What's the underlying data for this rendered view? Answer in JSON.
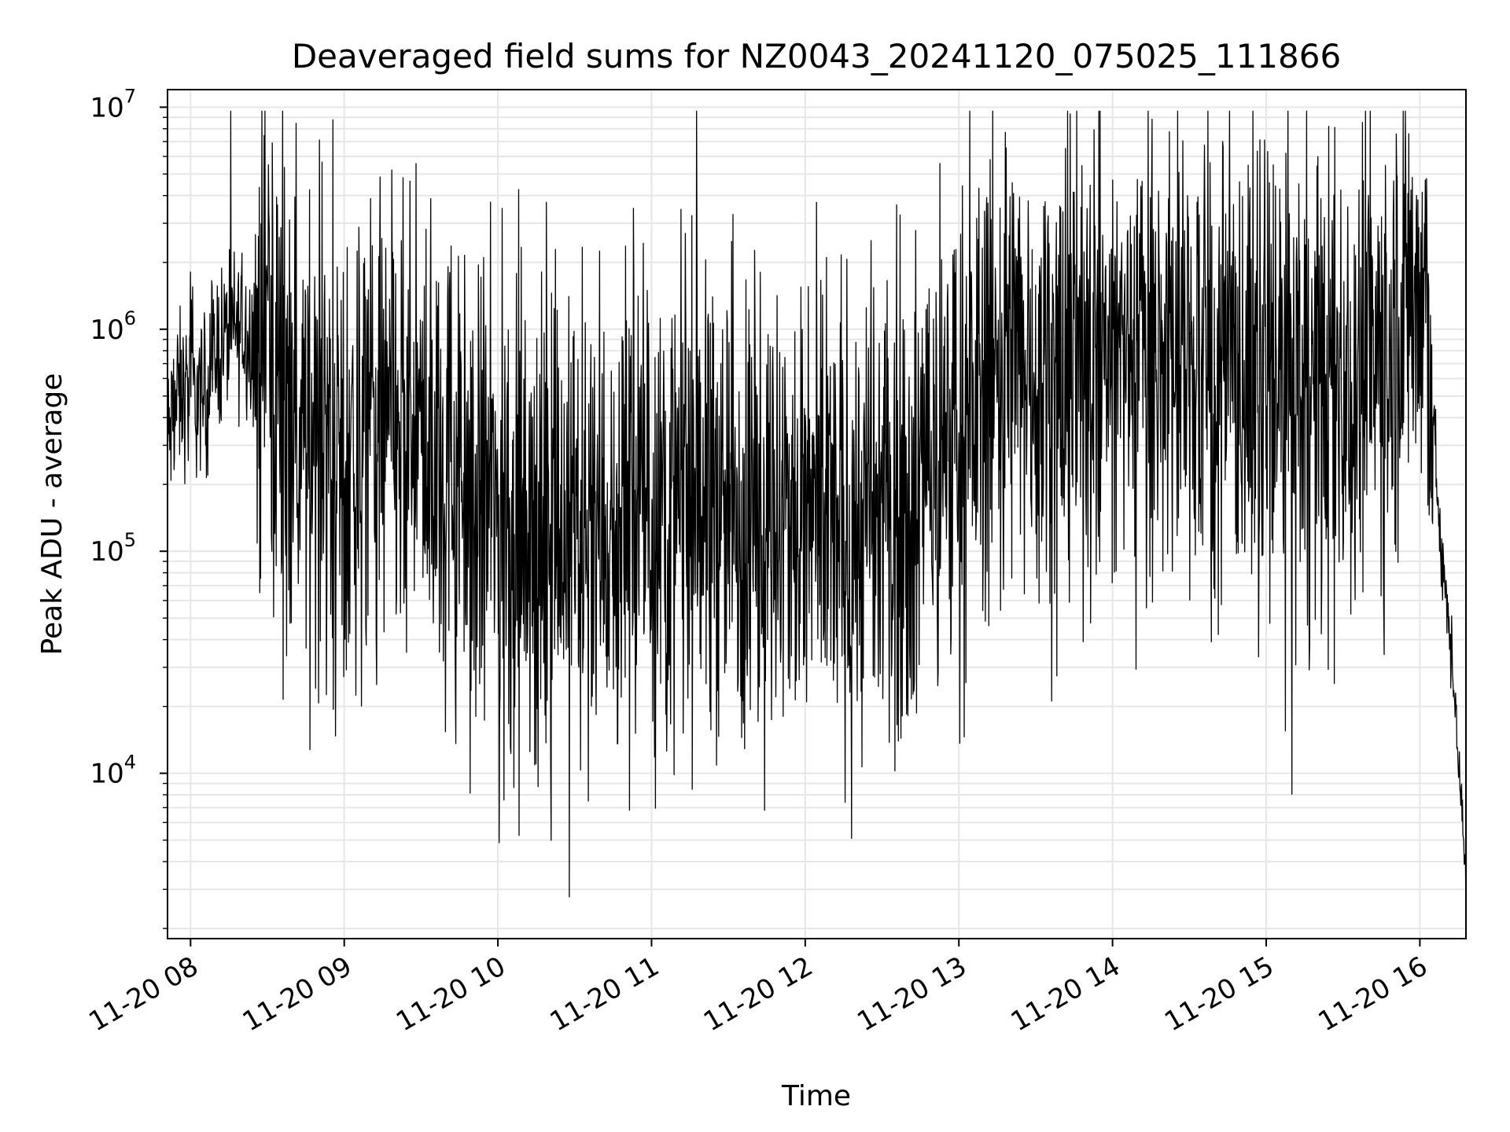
{
  "chart_data": {
    "type": "line",
    "title": "Deaveraged field sums for NZ0043_20241120_075025_111866",
    "xlabel": "Time",
    "ylabel": "Peak ADU - average",
    "y_scale": "log",
    "ylim": [
      1800,
      12000000
    ],
    "xlim": [
      "2024-11-20 07:51",
      "2024-11-20 16:18"
    ],
    "x_ticks": [
      "11-20 08",
      "11-20 09",
      "11-20 10",
      "11-20 11",
      "11-20 12",
      "11-20 13",
      "11-20 14",
      "11-20 15",
      "11-20 16"
    ],
    "y_ticks": [
      {
        "base": "10",
        "exp": "4"
      },
      {
        "base": "10",
        "exp": "5"
      },
      {
        "base": "10",
        "exp": "6"
      },
      {
        "base": "10",
        "exp": "7"
      }
    ],
    "grid": true,
    "line_color": "#000000",
    "grid_color": "#e6e6e6",
    "series": [
      {
        "x": [
          "2024-11-20 07:51",
          "2024-11-20 07:55",
          "2024-11-20 08:00",
          "2024-11-20 08:05",
          "2024-11-20 08:10",
          "2024-11-20 08:15",
          "2024-11-20 08:20",
          "2024-11-20 08:25",
          "2024-11-20 08:30",
          "2024-11-20 08:40",
          "2024-11-20 08:50",
          "2024-11-20 09:00",
          "2024-11-20 09:15",
          "2024-11-20 09:30",
          "2024-11-20 09:45",
          "2024-11-20 10:00",
          "2024-11-20 10:15",
          "2024-11-20 10:30",
          "2024-11-20 10:45",
          "2024-11-20 11:00",
          "2024-11-20 11:15",
          "2024-11-20 11:30",
          "2024-11-20 11:45",
          "2024-11-20 12:00",
          "2024-11-20 12:15",
          "2024-11-20 12:30",
          "2024-11-20 12:45",
          "2024-11-20 13:00",
          "2024-11-20 13:15",
          "2024-11-20 13:30",
          "2024-11-20 13:45",
          "2024-11-20 14:00",
          "2024-11-20 14:15",
          "2024-11-20 14:30",
          "2024-11-20 14:45",
          "2024-11-20 15:00",
          "2024-11-20 15:15",
          "2024-11-20 15:30",
          "2024-11-20 15:45",
          "2024-11-20 15:55",
          "2024-11-20 16:00",
          "2024-11-20 16:05",
          "2024-11-20 16:08",
          "2024-11-20 16:11",
          "2024-11-20 16:14",
          "2024-11-20 16:16",
          "2024-11-20 16:18"
        ],
        "y": [
          300000,
          500000,
          520000,
          480000,
          800000,
          950000,
          1000000,
          900000,
          850000,
          450000,
          300000,
          280000,
          350000,
          300000,
          220000,
          150000,
          120000,
          130000,
          140000,
          150000,
          160000,
          170000,
          140000,
          130000,
          120000,
          140000,
          200000,
          350000,
          700000,
          750000,
          700000,
          750000,
          800000,
          700000,
          650000,
          600000,
          550000,
          600000,
          800000,
          1500000,
          1400000,
          500000,
          100000,
          50000,
          20000,
          8000,
          3000
        ]
      }
    ]
  }
}
